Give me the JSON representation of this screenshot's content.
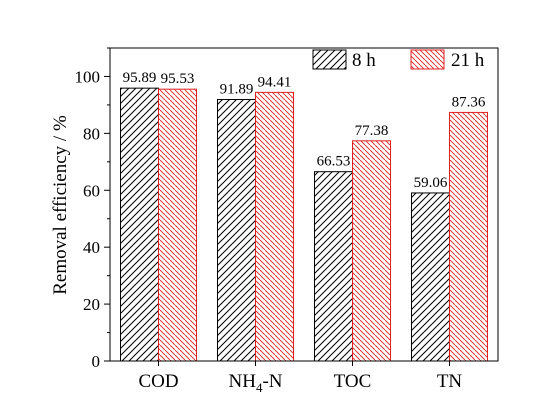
{
  "chart_data": {
    "type": "bar",
    "categories": [
      "COD",
      "NH4-N",
      "TOC",
      "TN"
    ],
    "category_labels": [
      {
        "main": "COD",
        "sub": "",
        "rest": ""
      },
      {
        "main": "NH",
        "sub": "4",
        "rest": "-N"
      },
      {
        "main": "TOC",
        "sub": "",
        "rest": ""
      },
      {
        "main": "TN",
        "sub": "",
        "rest": ""
      }
    ],
    "series": [
      {
        "name": "8 h",
        "values": [
          95.89,
          91.89,
          66.53,
          59.06
        ],
        "value_labels": [
          "95.89",
          "91.89",
          "66.53",
          "59.06"
        ],
        "pattern": "hatch-ne",
        "color": "#000000"
      },
      {
        "name": "21 h",
        "values": [
          95.53,
          94.41,
          77.38,
          87.36
        ],
        "value_labels": [
          "95.53",
          "94.41",
          "77.38",
          "87.36"
        ],
        "pattern": "hatch-nw",
        "color": "#e02020"
      }
    ],
    "xlabel": "",
    "ylabel": "Removal efficiency / %",
    "ylim": [
      0,
      110
    ],
    "yticks": [
      0,
      20,
      40,
      60,
      80,
      100
    ],
    "ytick_labels": [
      "0",
      "20",
      "40",
      "60",
      "80",
      "100"
    ],
    "legend_position": "top-right",
    "grid": false
  }
}
